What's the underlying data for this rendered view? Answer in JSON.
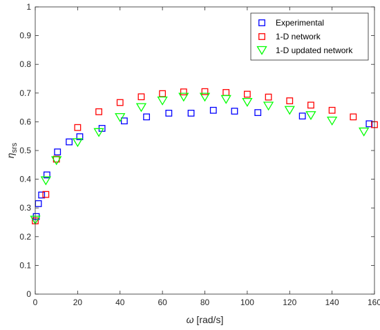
{
  "chart_data": {
    "type": "scatter",
    "xlabel": {
      "symbol": "ω",
      "unit": " [rad/s]"
    },
    "ylabel": {
      "symbol": "η",
      "subscript": "srs"
    },
    "xlim": [
      0,
      160
    ],
    "ylim": [
      0,
      1
    ],
    "xticks": [
      "0",
      "20",
      "40",
      "60",
      "80",
      "100",
      "120",
      "140",
      "160"
    ],
    "yticks": [
      "0",
      "0.1",
      "0.2",
      "0.3",
      "0.4",
      "0.5",
      "0.6",
      "0.7",
      "0.8",
      "0.9",
      "1"
    ],
    "xtick_values": [
      0,
      20,
      40,
      60,
      80,
      100,
      120,
      140,
      160
    ],
    "ytick_values": [
      0,
      0.1,
      0.2,
      0.3,
      0.4,
      0.5,
      0.6,
      0.7,
      0.8,
      0.9,
      1
    ],
    "grid": false,
    "legend_position": "top-right",
    "series": [
      {
        "name": "Experimental",
        "marker": "square",
        "color": "#0000ff",
        "x": [
          0.5,
          1.5,
          3,
          5.5,
          10.5,
          16,
          21,
          31.5,
          42,
          52.5,
          63,
          73.5,
          84,
          94,
          105,
          126,
          157.5
        ],
        "y": [
          0.27,
          0.315,
          0.345,
          0.415,
          0.495,
          0.53,
          0.548,
          0.577,
          0.603,
          0.617,
          0.63,
          0.63,
          0.64,
          0.637,
          0.632,
          0.62,
          0.593
        ]
      },
      {
        "name": "1-D network",
        "marker": "square",
        "color": "#ff0000",
        "x": [
          0,
          5,
          10,
          20,
          30,
          40,
          50,
          60,
          70,
          80,
          90,
          100,
          110,
          120,
          130,
          140,
          150,
          160
        ],
        "y": [
          0.255,
          0.347,
          0.47,
          0.58,
          0.635,
          0.667,
          0.687,
          0.698,
          0.704,
          0.705,
          0.702,
          0.696,
          0.686,
          0.673,
          0.658,
          0.64,
          0.617,
          0.59
        ]
      },
      {
        "name": "1-D updated network",
        "marker": "triangle-down",
        "color": "#00ff00",
        "x": [
          0,
          5,
          10,
          20,
          30,
          40,
          50,
          60,
          70,
          80,
          90,
          100,
          110,
          120,
          130,
          140,
          155
        ],
        "y": [
          0.258,
          0.395,
          0.465,
          0.528,
          0.563,
          0.615,
          0.65,
          0.673,
          0.686,
          0.686,
          0.678,
          0.668,
          0.655,
          0.64,
          0.622,
          0.603,
          0.565
        ]
      }
    ]
  }
}
